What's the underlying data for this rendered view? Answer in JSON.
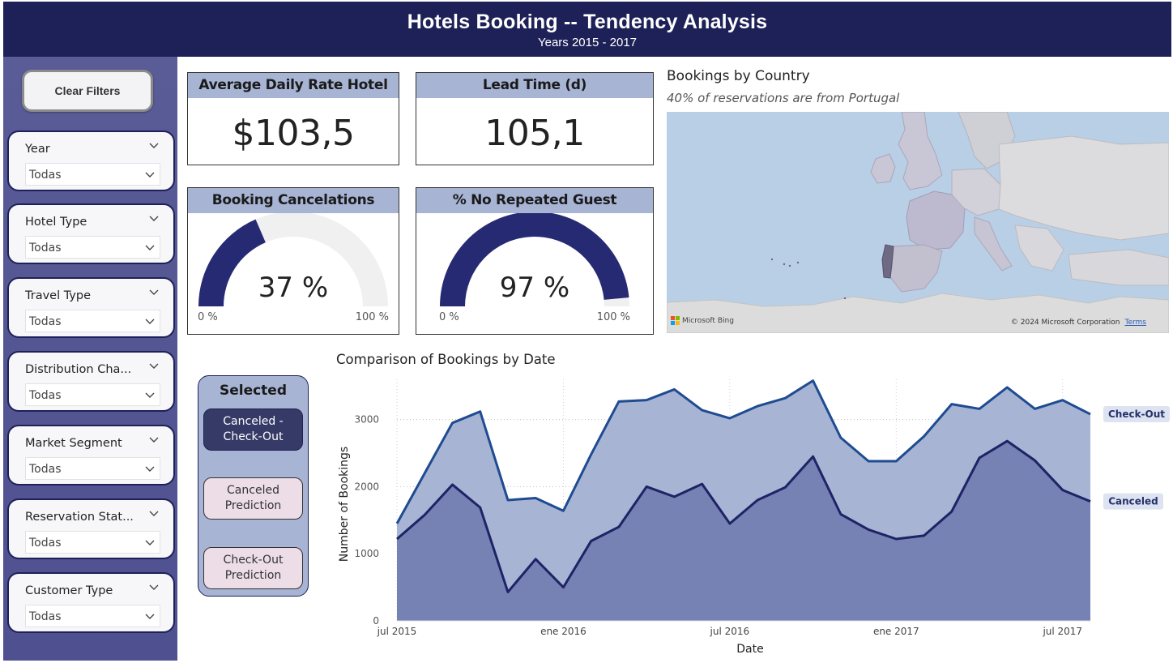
{
  "header": {
    "title": "Hotels Booking -- Tendency Analysis",
    "subtitle": "Years 2015 - 2017"
  },
  "sidebar": {
    "clear_filters": "Clear Filters",
    "slicers": [
      {
        "label": "Year",
        "value": "Todas"
      },
      {
        "label": "Hotel Type",
        "value": "Todas"
      },
      {
        "label": "Travel Type",
        "value": "Todas"
      },
      {
        "label": "Distribution Cha...",
        "value": "Todas"
      },
      {
        "label": "Market Segment",
        "value": "Todas"
      },
      {
        "label": "Reservation Stat...",
        "value": "Todas"
      },
      {
        "label": "Customer Type",
        "value": "Todas"
      }
    ]
  },
  "kpis": {
    "adr": {
      "title": "Average Daily Rate Hotel",
      "value": "$103,5"
    },
    "lead": {
      "title": "Lead Time (d)",
      "value": "105,1"
    }
  },
  "gauges": {
    "cancel": {
      "title": "Booking Cancelations",
      "value_text": "37 %",
      "value": 0.37,
      "min": "0 %",
      "max": "100 %"
    },
    "norepeat": {
      "title": "% No Repeated Guest",
      "value_text": "97 %",
      "value": 0.97,
      "min": "0 %",
      "max": "100 %"
    }
  },
  "colors": {
    "header": "#1e2157",
    "gauge_fill": "#262a73",
    "gauge_bg": "#f0f0f0",
    "checkout_fill": "#a7b4d4",
    "checkout_line": "#1f4b91",
    "canceled_fill": "#7280b1",
    "canceled_line": "#1e2366"
  },
  "map": {
    "title": "Bookings by Country",
    "subtitle": "40% of reservations are from Portugal",
    "bing": "Microsoft Bing",
    "copyright": "© 2024 Microsoft Corporation",
    "terms": "Terms"
  },
  "selector": {
    "title": "Selected",
    "buttons": [
      {
        "label1": "Canceled -",
        "label2": "Check-Out",
        "active": true
      },
      {
        "label1": "Canceled",
        "label2": "Prediction",
        "active": false
      },
      {
        "label1": "Check-Out",
        "label2": "Prediction",
        "active": false
      }
    ]
  },
  "chart_data": {
    "type": "area",
    "title": "Comparison of Bookings by Date",
    "xlabel": "Date",
    "ylabel": "Number of Bookings",
    "ylim": [
      0,
      3600
    ],
    "yticks": [
      0,
      1000,
      2000,
      3000
    ],
    "xticks": [
      {
        "label": "jul 2015",
        "index": 0
      },
      {
        "label": "ene 2016",
        "index": 6
      },
      {
        "label": "jul 2016",
        "index": 12
      },
      {
        "label": "ene 2017",
        "index": 18
      },
      {
        "label": "jul 2017",
        "index": 24
      }
    ],
    "x": [
      "2015-07",
      "2015-08",
      "2015-09",
      "2015-10",
      "2015-11",
      "2015-12",
      "2016-01",
      "2016-02",
      "2016-03",
      "2016-04",
      "2016-05",
      "2016-06",
      "2016-07",
      "2016-08",
      "2016-09",
      "2016-10",
      "2016-11",
      "2016-12",
      "2017-01",
      "2017-02",
      "2017-03",
      "2017-04",
      "2017-05",
      "2017-06",
      "2017-07",
      "2017-08"
    ],
    "series": [
      {
        "name": "Check-Out",
        "values": [
          1450,
          2200,
          2950,
          3120,
          1800,
          1830,
          1640,
          2480,
          3270,
          3290,
          3450,
          3140,
          3020,
          3200,
          3320,
          3580,
          2730,
          2380,
          2380,
          2750,
          3230,
          3160,
          3480,
          3160,
          3290,
          3080
        ]
      },
      {
        "name": "Canceled",
        "values": [
          1220,
          1580,
          2030,
          1690,
          430,
          920,
          500,
          1190,
          1400,
          2000,
          1850,
          2040,
          1450,
          1800,
          1990,
          2450,
          1590,
          1360,
          1220,
          1270,
          1630,
          2430,
          2680,
          2390,
          1950,
          1780
        ]
      }
    ],
    "legend": "end-of-line labels",
    "grid": true
  }
}
